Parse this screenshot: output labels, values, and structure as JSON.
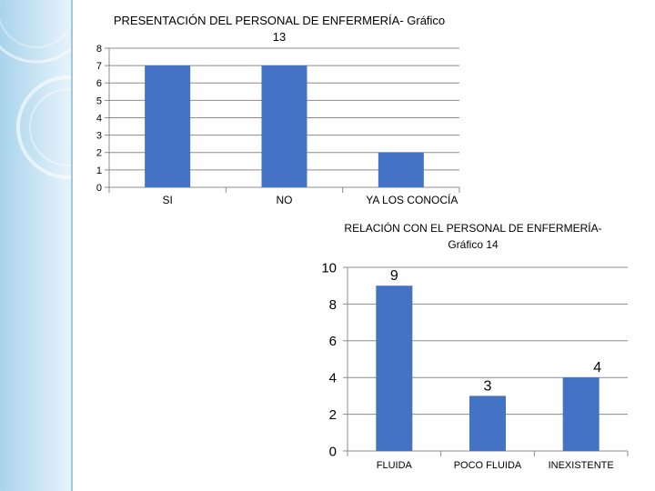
{
  "chart_data": [
    {
      "type": "bar",
      "title": "PRESENTACIÓN DEL PERSONAL DE ENFERMERÍA- Gráfico 13",
      "title_lines": [
        "PRESENTACIÓN DEL PERSONAL DE ENFERMERÍA- Gráfico",
        "13"
      ],
      "categories": [
        "SI",
        "NO",
        "YA LOS CONOCÍA"
      ],
      "values": [
        7,
        7,
        2
      ],
      "ylim": [
        0,
        8
      ],
      "yticks": [
        "0",
        "1",
        "2",
        "3",
        "4",
        "5",
        "6",
        "7",
        "8"
      ],
      "xlabel": "",
      "ylabel": "",
      "grid": true,
      "legend": "none",
      "bar_color": "#4472c4"
    },
    {
      "type": "bar",
      "title": "RELACIÓN CON EL PERSONAL DE ENFERMERÍA- Gráfico 14",
      "title_lines": [
        "RELACIÓN CON EL PERSONAL DE ENFERMERÍA-",
        "Gráfico 14"
      ],
      "categories": [
        "FLUIDA",
        "POCO FLUIDA",
        "INEXISTENTE"
      ],
      "values": [
        9,
        3,
        4
      ],
      "data_labels": [
        "9",
        "3",
        "4"
      ],
      "ylim": [
        0,
        10
      ],
      "yticks": [
        "0",
        "2",
        "4",
        "6",
        "8",
        "10"
      ],
      "xlabel": "",
      "ylabel": "",
      "grid": true,
      "legend": "none",
      "bar_color": "#4472c4"
    }
  ],
  "theme": {
    "side_band_color": "#bfe0f2",
    "ring_color": "#ffffff"
  }
}
